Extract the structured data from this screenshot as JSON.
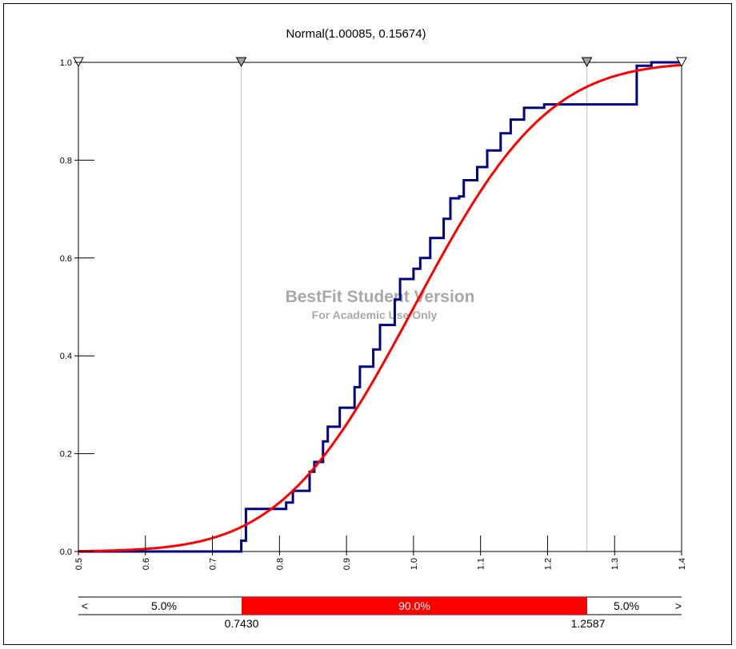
{
  "chart_data": {
    "type": "line",
    "title": "Normal(1.00085, 0.15674)",
    "watermark": {
      "line1": "BestFit Student Version",
      "line2": "For Academic Use Only"
    },
    "xlim": [
      0.5,
      1.4
    ],
    "ylim": [
      0.0,
      1.0
    ],
    "x_ticks": [
      "0.5",
      "0.6",
      "0.7",
      "0.8",
      "0.9",
      "1.0",
      "1.1",
      "1.2",
      "1.3",
      "1.4"
    ],
    "y_ticks": [
      "0.0",
      "0.2",
      "0.4",
      "0.6",
      "0.8",
      "1.0"
    ],
    "series": [
      {
        "kind": "empirical-step",
        "color": "#000080",
        "points": [
          [
            0.5,
            0.0
          ],
          [
            0.743,
            0.0
          ],
          [
            0.743,
            0.022
          ],
          [
            0.75,
            0.022
          ],
          [
            0.75,
            0.087
          ],
          [
            0.81,
            0.087
          ],
          [
            0.81,
            0.1
          ],
          [
            0.82,
            0.1
          ],
          [
            0.82,
            0.124
          ],
          [
            0.845,
            0.124
          ],
          [
            0.845,
            0.163
          ],
          [
            0.852,
            0.163
          ],
          [
            0.852,
            0.183
          ],
          [
            0.865,
            0.183
          ],
          [
            0.865,
            0.225
          ],
          [
            0.872,
            0.225
          ],
          [
            0.872,
            0.255
          ],
          [
            0.89,
            0.255
          ],
          [
            0.89,
            0.294
          ],
          [
            0.912,
            0.294
          ],
          [
            0.912,
            0.336
          ],
          [
            0.92,
            0.336
          ],
          [
            0.92,
            0.378
          ],
          [
            0.94,
            0.378
          ],
          [
            0.94,
            0.413
          ],
          [
            0.95,
            0.413
          ],
          [
            0.95,
            0.463
          ],
          [
            0.972,
            0.463
          ],
          [
            0.972,
            0.515
          ],
          [
            0.98,
            0.515
          ],
          [
            0.98,
            0.557
          ],
          [
            1.0,
            0.557
          ],
          [
            1.0,
            0.578
          ],
          [
            1.01,
            0.578
          ],
          [
            1.01,
            0.6
          ],
          [
            1.025,
            0.6
          ],
          [
            1.025,
            0.641
          ],
          [
            1.045,
            0.641
          ],
          [
            1.045,
            0.68
          ],
          [
            1.055,
            0.68
          ],
          [
            1.055,
            0.722
          ],
          [
            1.068,
            0.722
          ],
          [
            1.068,
            0.726
          ],
          [
            1.075,
            0.726
          ],
          [
            1.075,
            0.759
          ],
          [
            1.095,
            0.759
          ],
          [
            1.095,
            0.786
          ],
          [
            1.11,
            0.786
          ],
          [
            1.11,
            0.82
          ],
          [
            1.13,
            0.82
          ],
          [
            1.13,
            0.855
          ],
          [
            1.145,
            0.855
          ],
          [
            1.145,
            0.883
          ],
          [
            1.165,
            0.883
          ],
          [
            1.165,
            0.907
          ],
          [
            1.195,
            0.907
          ],
          [
            1.195,
            0.914
          ],
          [
            1.333,
            0.914
          ],
          [
            1.333,
            0.993
          ],
          [
            1.355,
            0.993
          ],
          [
            1.355,
            1.0
          ],
          [
            1.4,
            1.0
          ]
        ]
      },
      {
        "kind": "normal-cdf",
        "color": "#ff0000",
        "mu": 1.00085,
        "sigma": 0.15674
      }
    ],
    "markers": [
      {
        "x": 0.5,
        "style": "hollow"
      },
      {
        "x": 0.743,
        "style": "filled"
      },
      {
        "x": 1.2587,
        "style": "filled"
      },
      {
        "x": 1.4,
        "style": "hollow"
      }
    ],
    "percentile_bar": {
      "left_arrow": "<",
      "right_arrow": ">",
      "left_pct": "5.0%",
      "middle_pct": "90.0%",
      "right_pct": "5.0%",
      "left_value": "0.7430",
      "right_value": "1.2587",
      "middle_color": "#ff0000"
    }
  }
}
